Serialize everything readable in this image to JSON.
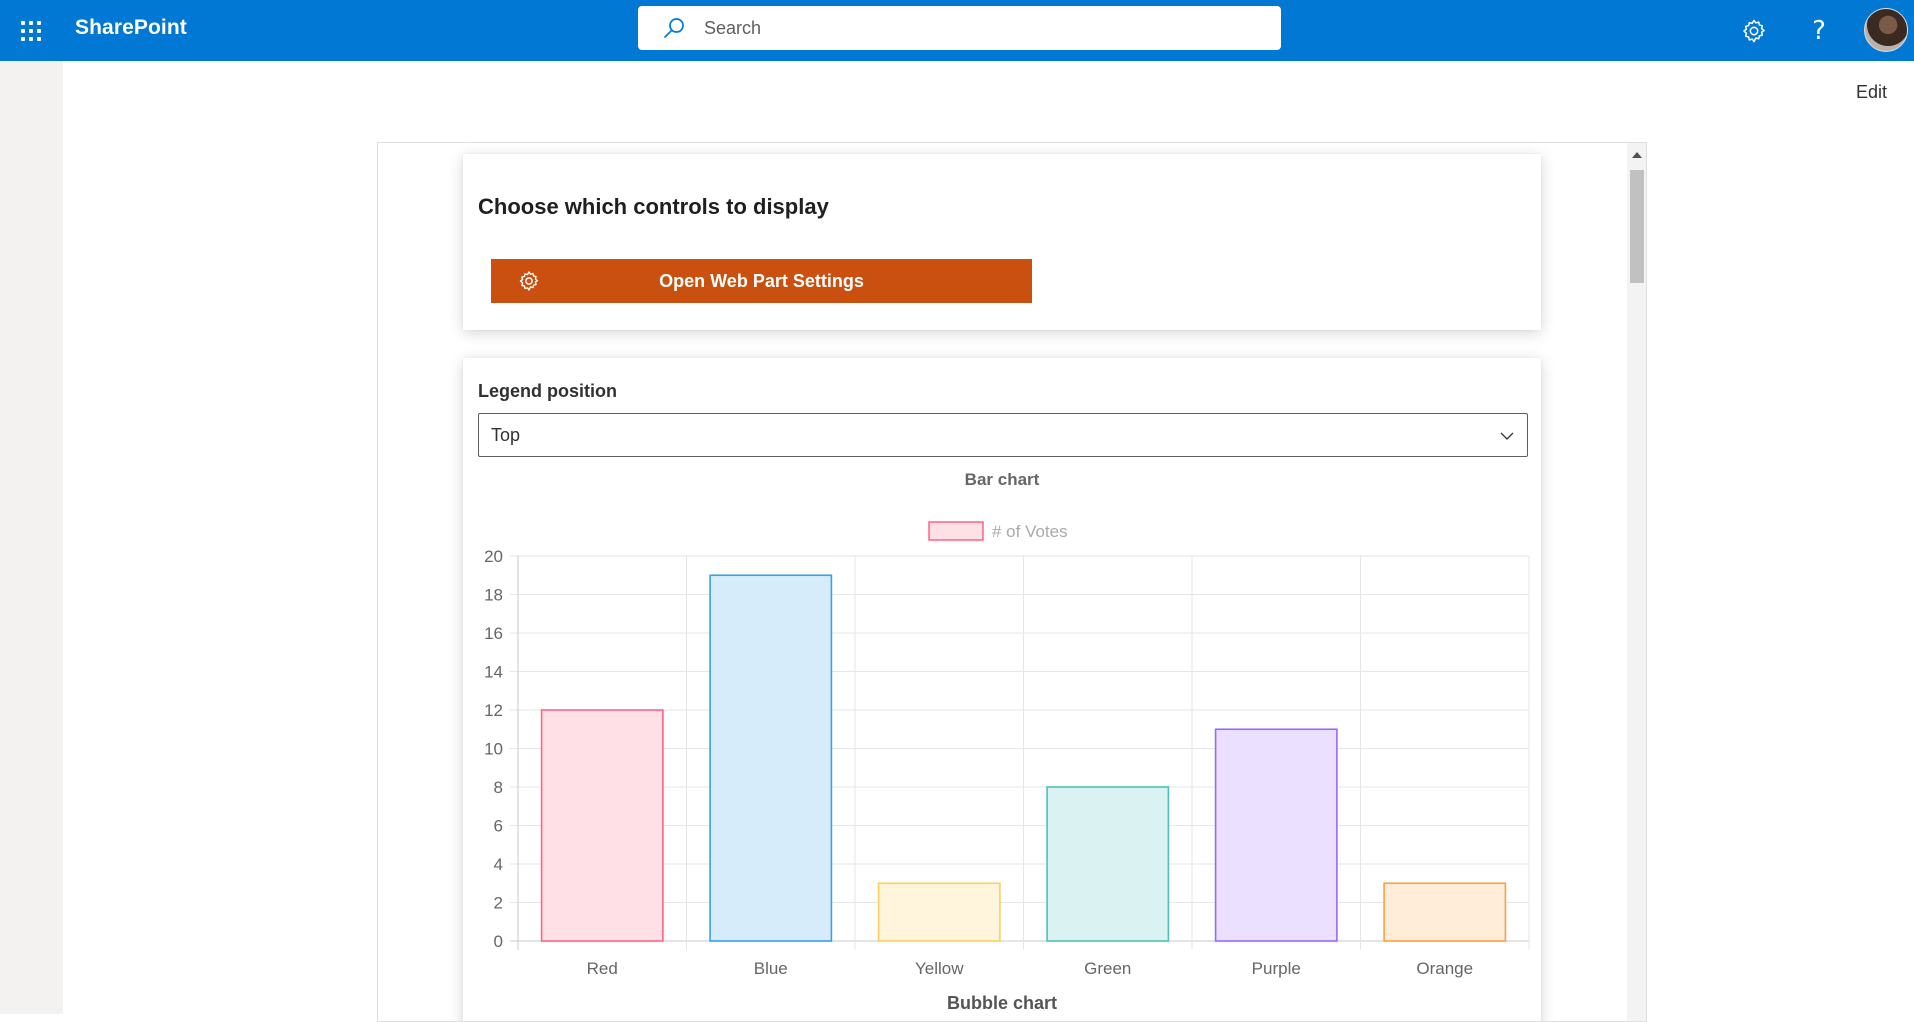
{
  "suitebar": {
    "brand": "SharePoint",
    "search_placeholder": "Search",
    "icons": [
      "waffle-icon",
      "search-icon",
      "gear-icon",
      "help-icon",
      "avatar"
    ],
    "help_glyph": "?"
  },
  "page": {
    "edit_label": "Edit"
  },
  "controls_card": {
    "title": "Choose which controls to display",
    "button_label": "Open Web Part Settings",
    "button_color": "#ca5010"
  },
  "legend_card": {
    "field_label": "Legend position",
    "dropdown_value": "Top"
  },
  "next_section_title": "Bubble chart",
  "chart_data": {
    "type": "bar",
    "title": "Bar chart",
    "legend_position": "top",
    "grid": true,
    "categories": [
      "Red",
      "Blue",
      "Yellow",
      "Green",
      "Purple",
      "Orange"
    ],
    "series": [
      {
        "name": "# of Votes",
        "values": [
          12,
          19,
          3,
          8,
          11,
          3
        ]
      }
    ],
    "ylim": [
      0,
      20
    ],
    "yticks": [
      0,
      2,
      4,
      6,
      8,
      10,
      12,
      14,
      16,
      18,
      20
    ],
    "bar_fill": [
      "#ffe0e6",
      "#d7ecfb",
      "#fff5dd",
      "#dbf2f2",
      "#ebe0ff",
      "#ffecd9"
    ],
    "bar_stroke": [
      "#ff6384",
      "#36a2eb",
      "#ffce56",
      "#4bc0c0",
      "#9966ff",
      "#ff9f40"
    ]
  }
}
